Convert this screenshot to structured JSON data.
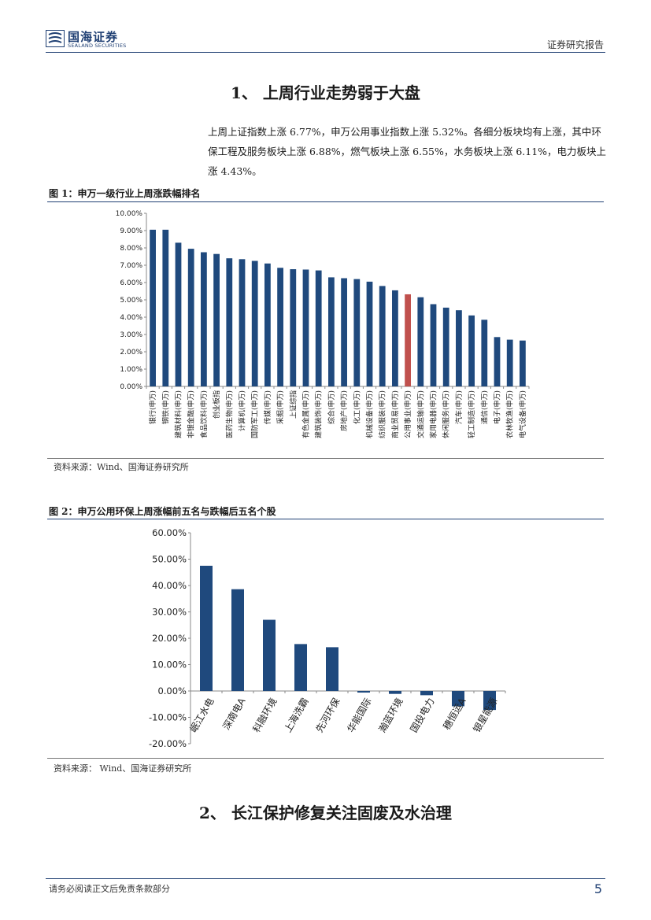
{
  "header": {
    "logo_cn": "国海证券",
    "logo_en": "SEALAND SECURITIES",
    "doc_type": "证券研究报告"
  },
  "section1": {
    "title": "1、 上周行业走势弱于大盘",
    "paragraph": "上周上证指数上涨 6.77%，申万公用事业指数上涨 5.32%。各细分板块均有上涨，其中环保工程及服务板块上涨 6.88%，燃气板块上涨 6.55%，水务板块上涨 6.11%，电力板块上涨 4.43%。"
  },
  "figure1": {
    "title": "图 1：申万一级行业上周涨跌幅排名",
    "source": "资料来源：Wind、国海证券研究所"
  },
  "figure2": {
    "title": "图 2：申万公用环保上周涨幅前五名与跌幅后五名个股",
    "source": "资料来源：  Wind、国海证券研究所"
  },
  "section2": {
    "title": "2、 长江保护修复关注固废及水治理"
  },
  "footer": {
    "disclaimer": "请务必阅读正文后免责条款部分",
    "page": "5"
  },
  "colors": {
    "bar": "#1f497d",
    "highlight": "#c0504d",
    "brand": "#1f3f73"
  },
  "chart_data": [
    {
      "type": "bar",
      "title": "",
      "xlabel": "",
      "ylabel": "",
      "ylim": [
        0,
        10
      ],
      "y_ticks": [
        "0.00%",
        "1.00%",
        "2.00%",
        "3.00%",
        "4.00%",
        "5.00%",
        "6.00%",
        "7.00%",
        "8.00%",
        "9.00%",
        "10.00%"
      ],
      "grid": false,
      "highlight_category": "公用事业(申万)",
      "categories": [
        "银行(申万)",
        "钢铁(申万)",
        "建筑材料(申万)",
        "非银金融(申万)",
        "食品饮料(申万)",
        "创业板指",
        "医药生物(申万)",
        "计算机(申万)",
        "国防军工(申万)",
        "传媒(申万)",
        "采掘(申万)",
        "上证综指",
        "有色金属(申万)",
        "建筑装饰(申万)",
        "综合(申万)",
        "房地产(申万)",
        "化工(申万)",
        "机械设备(申万)",
        "纺织服装(申万)",
        "商业贸易(申万)",
        "公用事业(申万)",
        "交通运输(申万)",
        "家用电器(申万)",
        "休闲服务(申万)",
        "汽车(申万)",
        "轻工制造(申万)",
        "通信(申万)",
        "电子(申万)",
        "农林牧渔(申万)",
        "电气设备(申万)"
      ],
      "values": [
        9.05,
        9.05,
        8.3,
        7.95,
        7.75,
        7.65,
        7.4,
        7.35,
        7.25,
        7.1,
        6.85,
        6.77,
        6.75,
        6.7,
        6.3,
        6.25,
        6.2,
        6.05,
        5.8,
        5.55,
        5.32,
        5.15,
        4.75,
        4.55,
        4.4,
        4.1,
        3.85,
        2.85,
        2.7,
        2.65
      ]
    },
    {
      "type": "bar",
      "title": "",
      "xlabel": "",
      "ylabel": "",
      "ylim": [
        -20,
        60
      ],
      "y_ticks": [
        "-20.00%",
        "-10.00%",
        "0.00%",
        "10.00%",
        "20.00%",
        "30.00%",
        "40.00%",
        "50.00%",
        "60.00%"
      ],
      "grid": false,
      "categories": [
        "岷江水电",
        "深南电A",
        "科融环境",
        "上海洗霸",
        "先河环保",
        "华能国际",
        "瀚蓝环境",
        "国投电力",
        "穗恒运A",
        "银星能源"
      ],
      "values": [
        47.5,
        38.6,
        27.0,
        17.8,
        16.6,
        -0.6,
        -1.1,
        -1.6,
        -5.8,
        -7.2
      ]
    }
  ]
}
